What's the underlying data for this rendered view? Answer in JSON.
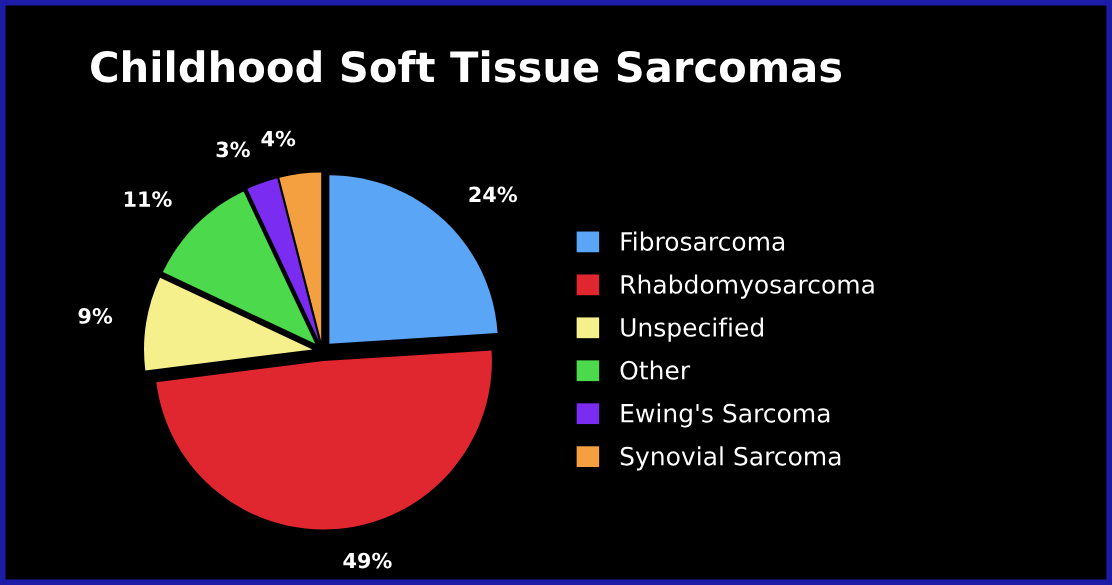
{
  "chart_data": {
    "type": "pie",
    "title": "Childhood Soft Tissue Sarcomas",
    "categories": [
      "Fibrosarcoma",
      "Rhabdomyosarcoma",
      "Unspecified",
      "Other",
      "Ewing's Sarcoma",
      "Synovial Sarcoma"
    ],
    "values": [
      24,
      49,
      9,
      11,
      3,
      4
    ],
    "colors": [
      "#5aa5f5",
      "#e0262e",
      "#f5f08c",
      "#4cd94c",
      "#7a2cf0",
      "#f5a040"
    ],
    "value_labels": [
      "24%",
      "49%",
      "9%",
      "11%",
      "3%",
      "4%"
    ],
    "legend": "right"
  }
}
